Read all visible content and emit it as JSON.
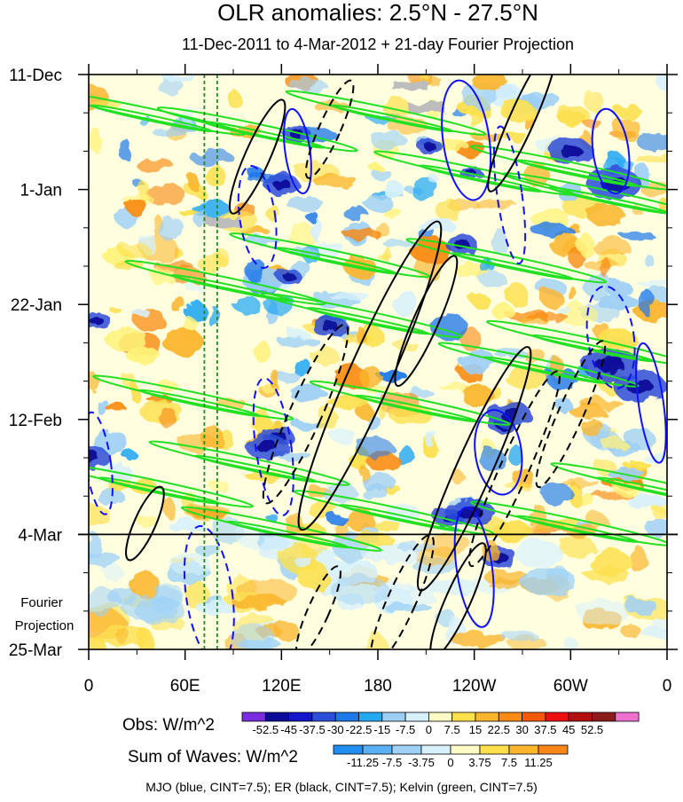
{
  "chart_data": {
    "type": "heatmap",
    "title": "OLR anomalies: 2.5°N - 27.5°N",
    "subtitle": "11-Dec-2011 to 4-Mar-2012 + 21-day Fourier Projection",
    "x_tick_labels": [
      "0",
      "60E",
      "120E",
      "180",
      "120W",
      "60W",
      "0"
    ],
    "x_ticks_degE": [
      0,
      60,
      120,
      180,
      240,
      300,
      360
    ],
    "xlim_degE": [
      0,
      360
    ],
    "y_tick_labels": [
      "11-Dec",
      "1-Jan",
      "22-Jan",
      "12-Feb",
      "4-Mar",
      "25-Mar"
    ],
    "y_ticks_day": [
      0,
      21,
      42,
      63,
      84,
      105
    ],
    "ylim_day": [
      0,
      105
    ],
    "projection_start_day": 84,
    "projection_label": [
      "Fourier",
      "Projection"
    ],
    "reference_lines_degE": [
      72,
      80
    ],
    "obs_legend": {
      "label": "Obs: W/m^2",
      "levels": [
        "-52.5",
        "-45",
        "-37.5",
        "-30",
        "-22.5",
        "-15",
        "-7.5",
        "0",
        "7.5",
        "15",
        "22.5",
        "30",
        "37.5",
        "45",
        "52.5"
      ],
      "colors": [
        "#7a2ee0",
        "#0a0a96",
        "#1414c8",
        "#2d4ed8",
        "#1f78ea",
        "#25a8f2",
        "#9dcff6",
        "#d6f0fc",
        "#fffbc6",
        "#fde04c",
        "#fbb62e",
        "#f98a12",
        "#f55a0c",
        "#ee1010",
        "#b40e0e",
        "#8c1c1c",
        "#f070d2"
      ]
    },
    "waves_legend": {
      "label": "Sum of Waves: W/m^2",
      "levels": [
        "-11.25",
        "-7.5",
        "-3.75",
        "0",
        "3.75",
        "7.5",
        "11.25"
      ],
      "colors": [
        "#1f8ef0",
        "#5ab0f5",
        "#a0d2f7",
        "#d8f0fc",
        "#fffbc6",
        "#fde04c",
        "#fbb62e",
        "#f9861a"
      ]
    },
    "series": [
      {
        "name": "MJO",
        "color": "#1010ff"
      },
      {
        "name": "ER",
        "color": "#000000"
      },
      {
        "name": "Kelvin",
        "color": "#22e022"
      }
    ],
    "caption": "MJO (blue, CINT=7.5); ER (black, CINT=7.5); Kelvin (green, CINT=7.5)"
  }
}
